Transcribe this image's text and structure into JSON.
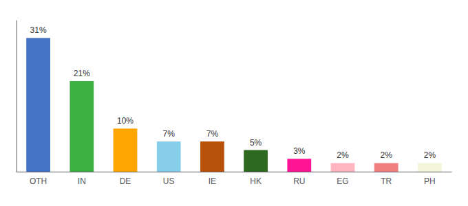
{
  "chart_data": {
    "type": "bar",
    "categories": [
      "OTH",
      "IN",
      "DE",
      "US",
      "IE",
      "HK",
      "RU",
      "EG",
      "TR",
      "PH"
    ],
    "values": [
      31,
      21,
      10,
      7,
      7,
      5,
      3,
      2,
      2,
      2
    ],
    "value_labels": [
      "31%",
      "21%",
      "10%",
      "7%",
      "7%",
      "5%",
      "3%",
      "2%",
      "2%",
      "2%"
    ],
    "colors": [
      "#4472C4",
      "#3CB043",
      "#FFA500",
      "#87CEEB",
      "#B8520A",
      "#2D6A1F",
      "#FF1493",
      "#FFB6C1",
      "#F08080",
      "#F5F5DC"
    ],
    "ylim": [
      0,
      35
    ],
    "grid": false,
    "data_labels": true,
    "tick_labels": "x"
  }
}
